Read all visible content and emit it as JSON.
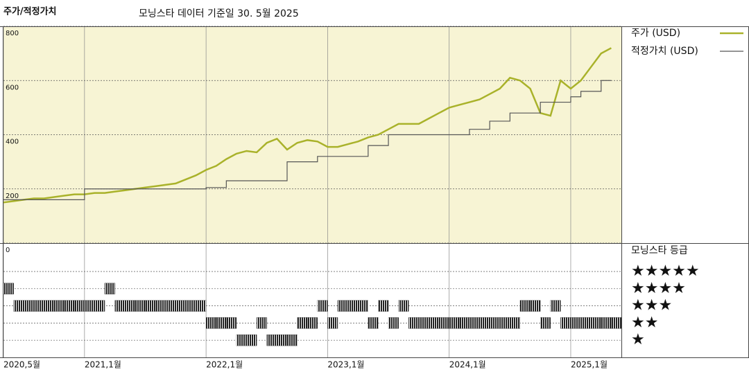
{
  "chart_data": [
    {
      "type": "line",
      "title": "주가/적정가치",
      "subtitle": "모닝스타 데이터 기준일 30. 5월 2025",
      "x": [
        "2020-05",
        "2020-06",
        "2020-07",
        "2020-08",
        "2020-09",
        "2020-10",
        "2020-11",
        "2020-12",
        "2021-01",
        "2021-02",
        "2021-03",
        "2021-04",
        "2021-05",
        "2021-06",
        "2021-07",
        "2021-08",
        "2021-09",
        "2021-10",
        "2021-11",
        "2021-12",
        "2022-01",
        "2022-02",
        "2022-03",
        "2022-04",
        "2022-05",
        "2022-06",
        "2022-07",
        "2022-08",
        "2022-09",
        "2022-10",
        "2022-11",
        "2022-12",
        "2023-01",
        "2023-02",
        "2023-03",
        "2023-04",
        "2023-05",
        "2023-06",
        "2023-07",
        "2023-08",
        "2023-09",
        "2023-10",
        "2023-11",
        "2023-12",
        "2024-01",
        "2024-02",
        "2024-03",
        "2024-04",
        "2024-05",
        "2024-06",
        "2024-07",
        "2024-08",
        "2024-09",
        "2024-10",
        "2024-11",
        "2024-12",
        "2025-01",
        "2025-02",
        "2025-03",
        "2025-04",
        "2025-05"
      ],
      "series": [
        {
          "name": "주가 (USD)",
          "color": "#a9b22a",
          "values": [
            150,
            155,
            160,
            165,
            165,
            170,
            175,
            180,
            180,
            185,
            185,
            190,
            195,
            200,
            205,
            210,
            215,
            220,
            235,
            250,
            270,
            285,
            310,
            330,
            340,
            335,
            370,
            385,
            345,
            370,
            380,
            375,
            355,
            355,
            365,
            375,
            390,
            400,
            420,
            440,
            440,
            440,
            460,
            480,
            500,
            510,
            520,
            530,
            550,
            570,
            610,
            600,
            570,
            480,
            470,
            600,
            570,
            600,
            650,
            700,
            720
          ]
        },
        {
          "name": "적정가치 (USD)",
          "color": "#555555",
          "step": true,
          "values": [
            160,
            160,
            160,
            160,
            160,
            160,
            160,
            160,
            200,
            200,
            200,
            200,
            200,
            200,
            200,
            200,
            200,
            200,
            200,
            200,
            205,
            205,
            230,
            230,
            230,
            230,
            230,
            230,
            300,
            300,
            300,
            320,
            320,
            320,
            320,
            320,
            360,
            360,
            400,
            400,
            400,
            400,
            400,
            400,
            400,
            400,
            420,
            420,
            450,
            450,
            480,
            480,
            480,
            520,
            520,
            520,
            540,
            560,
            560,
            600,
            600
          ]
        }
      ],
      "xlim": [
        "2020-05",
        "2025-06"
      ],
      "ylim": [
        0,
        800
      ],
      "yticks": [
        0,
        200,
        400,
        600,
        800
      ],
      "grid": true,
      "background": "#f7f4d4"
    },
    {
      "type": "rating",
      "title": "모닝스타 등급",
      "x": [
        "2020-05",
        "2020-06",
        "2020-07",
        "2020-08",
        "2020-09",
        "2020-10",
        "2020-11",
        "2020-12",
        "2021-01",
        "2021-02",
        "2021-03",
        "2021-04",
        "2021-05",
        "2021-06",
        "2021-07",
        "2021-08",
        "2021-09",
        "2021-10",
        "2021-11",
        "2021-12",
        "2022-01",
        "2022-02",
        "2022-03",
        "2022-04",
        "2022-05",
        "2022-06",
        "2022-07",
        "2022-08",
        "2022-09",
        "2022-10",
        "2022-11",
        "2022-12",
        "2023-01",
        "2023-02",
        "2023-03",
        "2023-04",
        "2023-05",
        "2023-06",
        "2023-07",
        "2023-08",
        "2023-09",
        "2023-10",
        "2023-11",
        "2023-12",
        "2024-01",
        "2024-02",
        "2024-03",
        "2024-04",
        "2024-05",
        "2024-06",
        "2024-07",
        "2024-08",
        "2024-09",
        "2024-10",
        "2024-11",
        "2024-12",
        "2025-01",
        "2025-02",
        "2025-03",
        "2025-04",
        "2025-05"
      ],
      "values": [
        4,
        3,
        3,
        3,
        3,
        3,
        3,
        3,
        3,
        3,
        4,
        3,
        3,
        3,
        3,
        3,
        3,
        3,
        3,
        3,
        2,
        2,
        2,
        1,
        1,
        2,
        1,
        1,
        1,
        2,
        2,
        3,
        2,
        3,
        3,
        3,
        2,
        3,
        2,
        3,
        2,
        2,
        2,
        2,
        2,
        2,
        2,
        2,
        2,
        2,
        2,
        3,
        3,
        2,
        3,
        2,
        2,
        2,
        2,
        2,
        2
      ],
      "color": "#222222",
      "xlim": [
        "2020-05",
        "2025-06"
      ],
      "xticks": [
        {
          "value": "2020-05",
          "label": "2020,5월"
        },
        {
          "value": "2021-01",
          "label": "2021,1월"
        },
        {
          "value": "2022-01",
          "label": "2022,1월"
        },
        {
          "value": "2023-01",
          "label": "2023,1월"
        },
        {
          "value": "2024-01",
          "label": "2024,1월"
        },
        {
          "value": "2025-01",
          "label": "2025,1월"
        }
      ],
      "ylim": [
        0,
        5
      ],
      "yticks": [
        {
          "value": 5,
          "label": "★★★★★"
        },
        {
          "value": 4,
          "label": "★★★★"
        },
        {
          "value": 3,
          "label": "★★★"
        },
        {
          "value": 2,
          "label": "★★"
        },
        {
          "value": 1,
          "label": "★"
        }
      ]
    }
  ]
}
